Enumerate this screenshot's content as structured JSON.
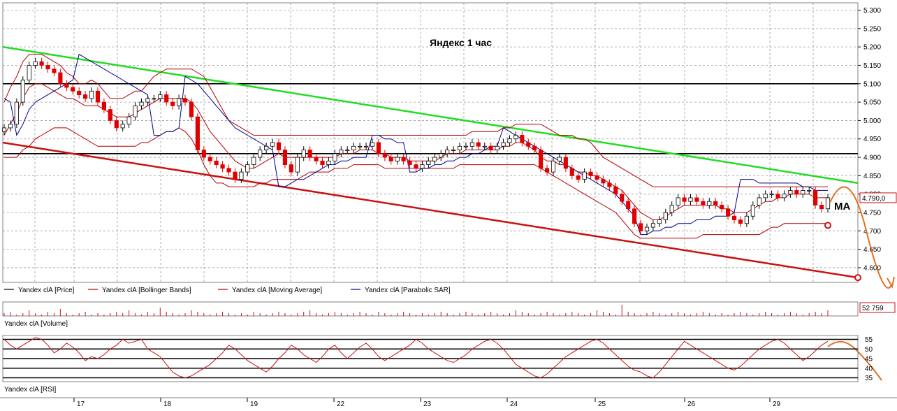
{
  "chart_data": {
    "type": "candlestick",
    "title": "Яндекс   1 час",
    "annotation": "MA",
    "x_day_labels": [
      "17",
      "18",
      "19",
      "22",
      "23",
      "24",
      "25",
      "26",
      "29"
    ],
    "price_axis": {
      "ticks": [
        "5.300",
        "5.250",
        "5.200",
        "5.150",
        "5.100",
        "5.050",
        "5.000",
        "4.950",
        "4.900",
        "4.850",
        "4.800",
        "4.750",
        "4.700",
        "4.650",
        "4.600"
      ],
      "ylim": [
        4560,
        5320
      ],
      "last_price_label": "4.790,0"
    },
    "volume_axis": {
      "last_volume_label": "52 759"
    },
    "rsi_axis": {
      "ticks": [
        "55",
        "50",
        "45",
        "40",
        "35"
      ],
      "levels": [
        55,
        50,
        45,
        40,
        35
      ]
    },
    "legend_price": [
      {
        "name": "Yandex clA [Price]",
        "color": "#000000"
      },
      {
        "name": "Yandex clA [Bollinger Bands]",
        "color": "#aa0000"
      },
      {
        "name": "Yandex clA [Moving Average]",
        "color": "#aa0000"
      },
      {
        "name": "Yandex clA [Parabolic SAR]",
        "color": "#00008b"
      }
    ],
    "legend_volume": "Yandex clA [Volume]",
    "legend_rsi": "Yandex clA [RSI]",
    "horizontal_levels": [
      5100,
      4910
    ],
    "trend_lines": [
      {
        "color": "#22dd22",
        "from": [
          0,
          5200
        ],
        "to": [
          1,
          4830
        ]
      },
      {
        "color": "#cc1111",
        "from": [
          0,
          4940
        ],
        "to": [
          1,
          4573
        ]
      }
    ],
    "close_series": [
      4980,
      4990,
      5050,
      5110,
      5150,
      5160,
      5150,
      5140,
      5130,
      5100,
      5090,
      5080,
      5070,
      5060,
      5080,
      5050,
      5030,
      5000,
      4980,
      4990,
      5010,
      5040,
      5050,
      5060,
      5060,
      5070,
      5050,
      5040,
      5060,
      5050,
      5010,
      4920,
      4900,
      4890,
      4880,
      4870,
      4860,
      4840,
      4860,
      4880,
      4900,
      4920,
      4930,
      4940,
      4920,
      4880,
      4860,
      4900,
      4920,
      4900,
      4890,
      4880,
      4890,
      4910,
      4920,
      4920,
      4930,
      4930,
      4930,
      4940,
      4910,
      4900,
      4890,
      4900,
      4890,
      4880,
      4870,
      4880,
      4890,
      4900,
      4910,
      4920,
      4920,
      4930,
      4930,
      4940,
      4930,
      4930,
      4920,
      4930,
      4940,
      4950,
      4960,
      4940,
      4930,
      4920,
      4870,
      4860,
      4890,
      4900,
      4870,
      4850,
      4840,
      4860,
      4850,
      4840,
      4830,
      4820,
      4800,
      4780,
      4760,
      4720,
      4700,
      4710,
      4720,
      4730,
      4750,
      4770,
      4790,
      4780,
      4790,
      4780,
      4770,
      4780,
      4770,
      4760,
      4740,
      4730,
      4720,
      4740,
      4770,
      4790,
      4800,
      4800,
      4790,
      4800,
      4810,
      4800,
      4810,
      4810,
      4770,
      4760,
      4790
    ],
    "bollinger_upper": [
      5050,
      5090,
      5120,
      5160,
      5180,
      5180,
      5180,
      5170,
      5160,
      5150,
      5130,
      5120,
      5100,
      5100,
      5110,
      5100,
      5080,
      5060,
      5060,
      5060,
      5070,
      5080,
      5080,
      5100,
      5120,
      5130,
      5140,
      5140,
      5140,
      5140,
      5140,
      5130,
      5120,
      5090,
      5060,
      5030,
      5000,
      4990,
      4980,
      4970,
      4960,
      4960,
      4960,
      4960,
      4960,
      4960,
      4960,
      4960,
      4960,
      4960,
      4960,
      4960,
      4960,
      4960,
      4960,
      4960,
      4960,
      4960,
      4960,
      4960,
      4960,
      4960,
      4960,
      4960,
      4960,
      4960,
      4960,
      4960,
      4960,
      4960,
      4960,
      4960,
      4960,
      4960,
      4960,
      4970,
      4970,
      4970,
      4970,
      4970,
      4980,
      4980,
      4990,
      4990,
      4990,
      4990,
      4990,
      4980,
      4970,
      4960,
      4960,
      4960,
      4950,
      4950,
      4940,
      4920,
      4900,
      4890,
      4880,
      4870,
      4860,
      4850,
      4840,
      4830,
      4820,
      4820,
      4820,
      4820,
      4820,
      4820,
      4820,
      4820,
      4820,
      4820,
      4820,
      4820,
      4820,
      4820,
      4820,
      4820,
      4820,
      4820,
      4820,
      4820,
      4820,
      4820,
      4820,
      4820,
      4820,
      4820,
      4820,
      4820,
      4820
    ],
    "bollinger_lower": [
      4900,
      4900,
      4900,
      4920,
      4930,
      4950,
      4960,
      4970,
      4980,
      4980,
      4980,
      4970,
      4960,
      4950,
      4940,
      4930,
      4930,
      4930,
      4930,
      4930,
      4930,
      4930,
      4940,
      4940,
      4950,
      4960,
      4970,
      4970,
      4980,
      4970,
      4950,
      4920,
      4880,
      4850,
      4830,
      4830,
      4820,
      4820,
      4820,
      4820,
      4820,
      4830,
      4830,
      4840,
      4840,
      4840,
      4840,
      4840,
      4850,
      4860,
      4860,
      4860,
      4860,
      4870,
      4870,
      4870,
      4880,
      4880,
      4880,
      4880,
      4880,
      4870,
      4870,
      4870,
      4870,
      4870,
      4870,
      4870,
      4870,
      4870,
      4870,
      4870,
      4870,
      4880,
      4880,
      4880,
      4880,
      4880,
      4880,
      4880,
      4880,
      4880,
      4880,
      4880,
      4880,
      4880,
      4870,
      4860,
      4850,
      4840,
      4830,
      4820,
      4810,
      4800,
      4790,
      4780,
      4770,
      4760,
      4750,
      4730,
      4710,
      4690,
      4680,
      4680,
      4680,
      4680,
      4680,
      4680,
      4680,
      4680,
      4680,
      4680,
      4690,
      4690,
      4690,
      4690,
      4690,
      4690,
      4690,
      4690,
      4690,
      4690,
      4700,
      4710,
      4710,
      4720,
      4720,
      4720,
      4720,
      4720,
      4720,
      4720,
      4720
    ],
    "moving_average": [
      4960,
      4990,
      5020,
      5060,
      5090,
      5100,
      5100,
      5090,
      5080,
      5070,
      5060,
      5060,
      5050,
      5040,
      5040,
      5040,
      5030,
      5020,
      5010,
      5010,
      5010,
      5020,
      5030,
      5040,
      5050,
      5060,
      5060,
      5060,
      5060,
      5060,
      5050,
      5030,
      5000,
      4970,
      4950,
      4930,
      4910,
      4890,
      4880,
      4870,
      4870,
      4880,
      4890,
      4900,
      4910,
      4900,
      4900,
      4900,
      4900,
      4900,
      4900,
      4900,
      4900,
      4900,
      4910,
      4910,
      4910,
      4920,
      4920,
      4920,
      4910,
      4910,
      4900,
      4900,
      4900,
      4890,
      4890,
      4890,
      4890,
      4890,
      4900,
      4910,
      4910,
      4910,
      4920,
      4920,
      4920,
      4920,
      4920,
      4920,
      4930,
      4930,
      4940,
      4940,
      4930,
      4920,
      4900,
      4890,
      4890,
      4880,
      4880,
      4870,
      4860,
      4860,
      4850,
      4850,
      4840,
      4830,
      4820,
      4810,
      4790,
      4770,
      4750,
      4740,
      4730,
      4730,
      4740,
      4750,
      4760,
      4770,
      4770,
      4770,
      4770,
      4770,
      4770,
      4760,
      4760,
      4750,
      4750,
      4750,
      4760,
      4770,
      4780,
      4780,
      4790,
      4790,
      4800,
      4800,
      4800,
      4800,
      4790,
      4790,
      4790
    ],
    "parabolic_sar": [
      5060,
      5050,
      4960,
      4990,
      5030,
      5050,
      5060,
      5070,
      5080,
      5090,
      5100,
      5110,
      5180,
      5170,
      5160,
      5150,
      5140,
      5130,
      5120,
      5110,
      5100,
      5090,
      5080,
      5070,
      4960,
      4960,
      4970,
      4970,
      4980,
      5120,
      5110,
      5100,
      5080,
      5060,
      5040,
      5020,
      5000,
      4980,
      4970,
      4960,
      4950,
      4940,
      4930,
      4920,
      4820,
      4820,
      4830,
      4840,
      4840,
      4850,
      4860,
      4870,
      4880,
      4880,
      4890,
      4890,
      4900,
      4900,
      4900,
      4960,
      4960,
      4950,
      4950,
      4940,
      4940,
      4860,
      4860,
      4870,
      4870,
      4880,
      4880,
      4890,
      4890,
      4900,
      4900,
      4910,
      4910,
      4920,
      4930,
      4930,
      4980,
      4970,
      4960,
      4950,
      4940,
      4930,
      4920,
      4910,
      4900,
      4890,
      4880,
      4870,
      4860,
      4850,
      4840,
      4830,
      4820,
      4810,
      4800,
      4780,
      4760,
      4740,
      4690,
      4690,
      4700,
      4700,
      4710,
      4710,
      4720,
      4720,
      4720,
      4730,
      4730,
      4730,
      4740,
      4740,
      4740,
      4750,
      4840,
      4840,
      4840,
      4830,
      4830,
      4830,
      4830,
      4830,
      4830,
      4830,
      4820,
      4820,
      4810,
      4810,
      4810
    ],
    "rsi": [
      55,
      52,
      50,
      52,
      54,
      56,
      55,
      52,
      48,
      50,
      53,
      51,
      48,
      44,
      46,
      45,
      47,
      50,
      52,
      55,
      53,
      54,
      55,
      50,
      48,
      46,
      42,
      38,
      36,
      35,
      36,
      38,
      40,
      42,
      45,
      48,
      52,
      50,
      47,
      44,
      42,
      40,
      38,
      41,
      45,
      48,
      52,
      50,
      47,
      45,
      43,
      46,
      50,
      52,
      48,
      45,
      48,
      51,
      53,
      50,
      46,
      44,
      46,
      48,
      50,
      52,
      55,
      53,
      50,
      48,
      46,
      44,
      43,
      45,
      47,
      50,
      52,
      54,
      55,
      53,
      50,
      46,
      42,
      40,
      38,
      36,
      35,
      37,
      40,
      43,
      46,
      48,
      50,
      52,
      54,
      55,
      53,
      50,
      47,
      44,
      41,
      39,
      38,
      36,
      35,
      38,
      42,
      46,
      50,
      54,
      52,
      50,
      48,
      46,
      44,
      42,
      40,
      39,
      41,
      44,
      47,
      50,
      52,
      54,
      55,
      53,
      50,
      47,
      44,
      46,
      49,
      52,
      54
    ],
    "volume": [
      2,
      3,
      1,
      2,
      4,
      2,
      1,
      3,
      2,
      5,
      2,
      1,
      2,
      3,
      1,
      2,
      1,
      2,
      3,
      2,
      4,
      2,
      1,
      3,
      2,
      6,
      3,
      2,
      1,
      2,
      4,
      3,
      2,
      1,
      2,
      3,
      2,
      1,
      2,
      1,
      3,
      2,
      1,
      2,
      3,
      2,
      1,
      2,
      3,
      4,
      2,
      1,
      2,
      3,
      2,
      1,
      2,
      3,
      2,
      1,
      3,
      2,
      1,
      2,
      3,
      2,
      1,
      2,
      1,
      2,
      3,
      2,
      1,
      2,
      3,
      2,
      1,
      2,
      3,
      2,
      1,
      2,
      4,
      3,
      2,
      1,
      2,
      3,
      2,
      1,
      2,
      3,
      2,
      1,
      2,
      4,
      3,
      2,
      1,
      8,
      3,
      2,
      1,
      2,
      3,
      2,
      1,
      2,
      3,
      2,
      1,
      2,
      3,
      2,
      1,
      2,
      1,
      2,
      3,
      2,
      1,
      2,
      3,
      2,
      1,
      2,
      3,
      2,
      1,
      2,
      3,
      2,
      4
    ]
  }
}
